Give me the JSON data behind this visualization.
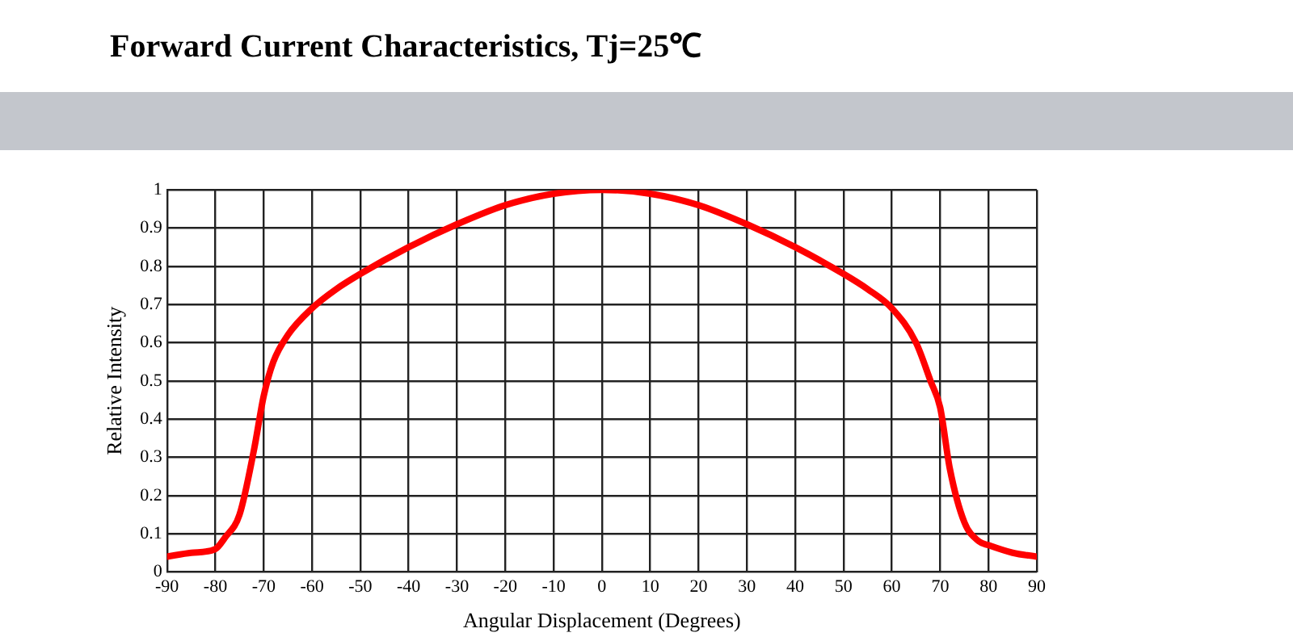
{
  "chart_data": {
    "type": "line",
    "title": "Forward Current Characteristics, Tj=25℃",
    "xlabel": "Angular Displacement (Degrees)",
    "ylabel": "Relative Intensity",
    "x": [
      -90,
      -85,
      -80,
      -78,
      -75,
      -72,
      -70,
      -68,
      -65,
      -60,
      -55,
      -50,
      -40,
      -30,
      -20,
      -10,
      0,
      10,
      20,
      30,
      40,
      50,
      55,
      60,
      65,
      68,
      70,
      72,
      75,
      78,
      80,
      85,
      90
    ],
    "series": [
      {
        "color": "#ff0000",
        "values": [
          0.04,
          0.05,
          0.06,
          0.09,
          0.15,
          0.32,
          0.46,
          0.55,
          0.62,
          0.69,
          0.74,
          0.78,
          0.85,
          0.91,
          0.96,
          0.99,
          1,
          0.99,
          0.96,
          0.91,
          0.85,
          0.78,
          0.74,
          0.69,
          0.6,
          0.5,
          0.43,
          0.27,
          0.13,
          0.08,
          0.07,
          0.05,
          0.04
        ]
      }
    ],
    "xlim": [
      -90,
      90
    ],
    "xticks": [
      -90,
      -80,
      -70,
      -60,
      -50,
      -40,
      -30,
      -20,
      -10,
      0,
      10,
      20,
      30,
      40,
      50,
      60,
      70,
      80,
      90
    ],
    "ylim": [
      0,
      1
    ],
    "yticks": [
      0,
      0.1,
      0.2,
      0.3,
      0.4,
      0.5,
      0.6,
      0.7,
      0.8,
      0.9,
      1
    ],
    "grid": true,
    "legend": false,
    "marker": "none",
    "line_style": "solid"
  }
}
